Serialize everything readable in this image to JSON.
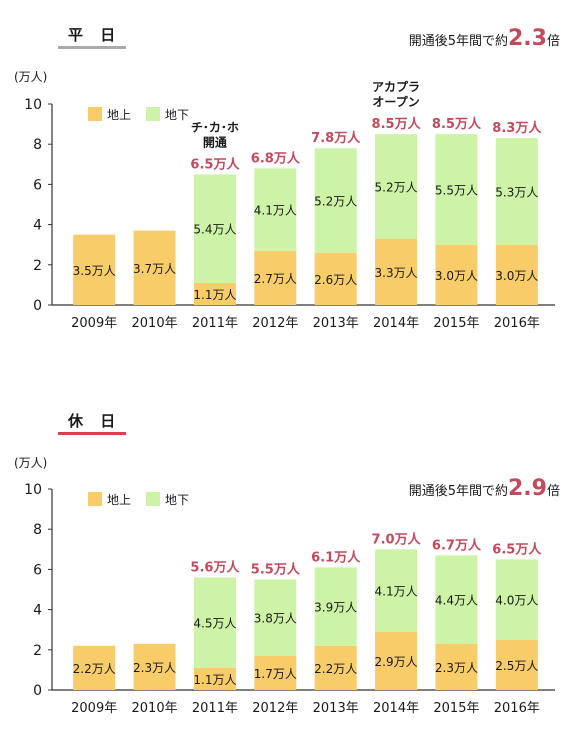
{
  "colors": {
    "ground": "#f9cc6a",
    "under": "#cdf3a6",
    "total_text": "#c24a5c",
    "axis": "#333333",
    "weekday_bar": "#aaaaaa",
    "holiday_bar": "#d9404e"
  },
  "charts": [
    {
      "heading": "平 日",
      "note": {
        "prefix": "開通後5年間で約",
        "value": "2.3",
        "suffix": "倍"
      },
      "unit": "(万人)",
      "annotations": [
        {
          "text": "チ･カ･ホ\n開通",
          "category": "2011年"
        },
        {
          "text": "アカプラ\nオープン",
          "category": "2014年"
        }
      ]
    },
    {
      "heading": "休 日",
      "note": {
        "prefix": "開通後5年間で約",
        "value": "2.9",
        "suffix": "倍"
      },
      "unit": "(万人)",
      "annotations": []
    }
  ],
  "chart_data": [
    {
      "type": "bar",
      "stacked": true,
      "categories": [
        "2009年",
        "2010年",
        "2011年",
        "2012年",
        "2013年",
        "2014年",
        "2015年",
        "2016年"
      ],
      "series": [
        {
          "name": "地上",
          "values": [
            3.5,
            3.7,
            1.1,
            2.7,
            2.6,
            3.3,
            3.0,
            3.0
          ],
          "labels": [
            "3.5万人",
            "3.7万人",
            "1.1万人",
            "2.7万人",
            "2.6万人",
            "3.3万人",
            "3.0万人",
            "3.0万人"
          ]
        },
        {
          "name": "地下",
          "values": [
            null,
            null,
            5.4,
            4.1,
            5.2,
            5.2,
            5.5,
            5.3
          ],
          "labels": [
            "",
            "",
            "5.4万人",
            "4.1万人",
            "5.2万人",
            "5.2万人",
            "5.5万人",
            "5.3万人"
          ]
        }
      ],
      "totals": [
        null,
        null,
        6.5,
        6.8,
        7.8,
        8.5,
        8.5,
        8.3
      ],
      "total_labels": [
        "",
        "",
        "6.5万人",
        "6.8万人",
        "7.8万人",
        "8.5万人",
        "8.5万人",
        "8.3万人"
      ],
      "yticks": [
        "0",
        "2",
        "4",
        "6",
        "8",
        "10"
      ],
      "ylim": [
        0,
        10
      ],
      "legend_position": "top-left"
    },
    {
      "type": "bar",
      "stacked": true,
      "categories": [
        "2009年",
        "2010年",
        "2011年",
        "2012年",
        "2013年",
        "2014年",
        "2015年",
        "2016年"
      ],
      "series": [
        {
          "name": "地上",
          "values": [
            2.2,
            2.3,
            1.1,
            1.7,
            2.2,
            2.9,
            2.3,
            2.5
          ],
          "labels": [
            "2.2万人",
            "2.3万人",
            "1.1万人",
            "1.7万人",
            "2.2万人",
            "2.9万人",
            "2.3万人",
            "2.5万人"
          ]
        },
        {
          "name": "地下",
          "values": [
            null,
            null,
            4.5,
            3.8,
            3.9,
            4.1,
            4.4,
            4.0
          ],
          "labels": [
            "",
            "",
            "4.5万人",
            "3.8万人",
            "3.9万人",
            "4.1万人",
            "4.4万人",
            "4.0万人"
          ]
        }
      ],
      "totals": [
        null,
        null,
        5.6,
        5.5,
        6.1,
        7.0,
        6.7,
        6.5
      ],
      "total_labels": [
        "",
        "",
        "5.6万人",
        "5.5万人",
        "6.1万人",
        "7.0万人",
        "6.7万人",
        "6.5万人"
      ],
      "yticks": [
        "0",
        "2",
        "4",
        "6",
        "8",
        "10"
      ],
      "ylim": [
        0,
        10
      ],
      "legend_position": "top-left"
    }
  ]
}
